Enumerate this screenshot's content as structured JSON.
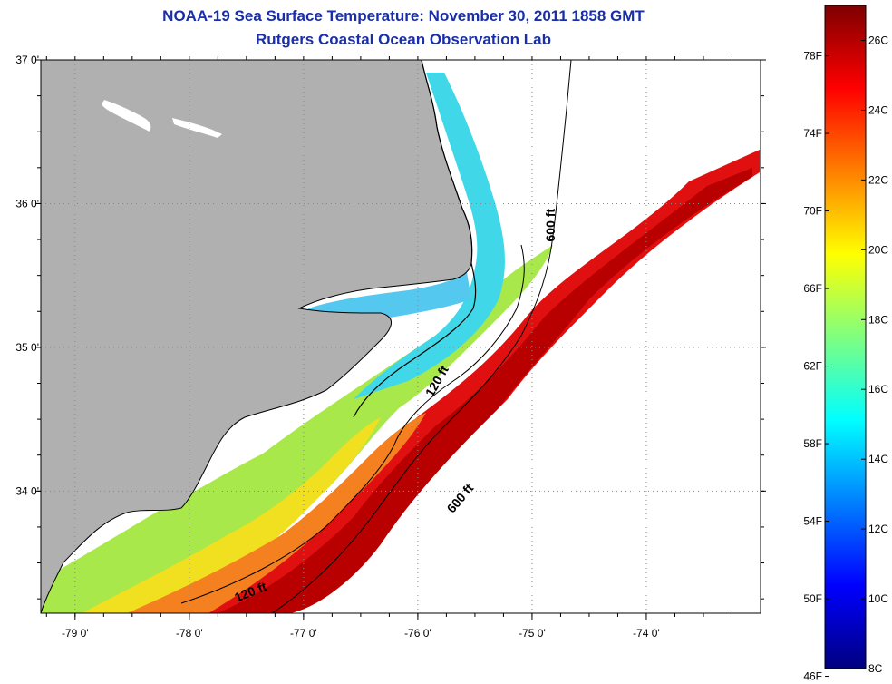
{
  "header": {
    "title": "NOAA-19 Sea Surface Temperature:  November 30, 2011 1858 GMT",
    "subtitle": "Rutgers Coastal Ocean Observation Lab"
  },
  "map": {
    "lon_range": [
      -79.3,
      -73.0
    ],
    "lat_range": [
      33.15,
      37.0
    ],
    "lon_ticks": [
      {
        "value": -79,
        "label": "-79 0'"
      },
      {
        "value": -78,
        "label": "-78 0'"
      },
      {
        "value": -77,
        "label": "-77 0'"
      },
      {
        "value": -76,
        "label": "-76 0'"
      },
      {
        "value": -75,
        "label": "-75 0'"
      },
      {
        "value": -74,
        "label": "-74 0'"
      }
    ],
    "lat_ticks": [
      {
        "value": 37,
        "label": "37 0'"
      },
      {
        "value": 36,
        "label": "36 0'"
      },
      {
        "value": 35,
        "label": "35 0'"
      },
      {
        "value": 34,
        "label": "34 0'"
      }
    ],
    "contour_labels": [
      {
        "text": "600 ft",
        "lon": -74.8,
        "lat": 35.85,
        "angle": -90
      },
      {
        "text": "120 ft",
        "lon": -75.8,
        "lat": 34.75,
        "angle": -60
      },
      {
        "text": "600 ft",
        "lon": -75.6,
        "lat": 33.93,
        "angle": -50
      },
      {
        "text": "120 ft",
        "lon": -77.45,
        "lat": 33.27,
        "angle": -22
      }
    ],
    "colors": {
      "land": "#b0b0b0",
      "no_data": "#ffffff",
      "grid": "#888888"
    }
  },
  "colorbar": {
    "fahrenheit_labels": [
      "78F",
      "74F",
      "70F",
      "66F",
      "62F",
      "58F",
      "54F",
      "50F",
      "46F"
    ],
    "celsius_labels": [
      "26C",
      "24C",
      "22C",
      "20C",
      "18C",
      "16C",
      "14C",
      "12C",
      "10C",
      "8C"
    ],
    "min_c": 8,
    "max_c": 27,
    "gradient_stops": [
      "#00007f",
      "#0000ff",
      "#007fff",
      "#00ffff",
      "#7fff7f",
      "#ffff00",
      "#ff7f00",
      "#ff0000",
      "#7f0000"
    ]
  }
}
